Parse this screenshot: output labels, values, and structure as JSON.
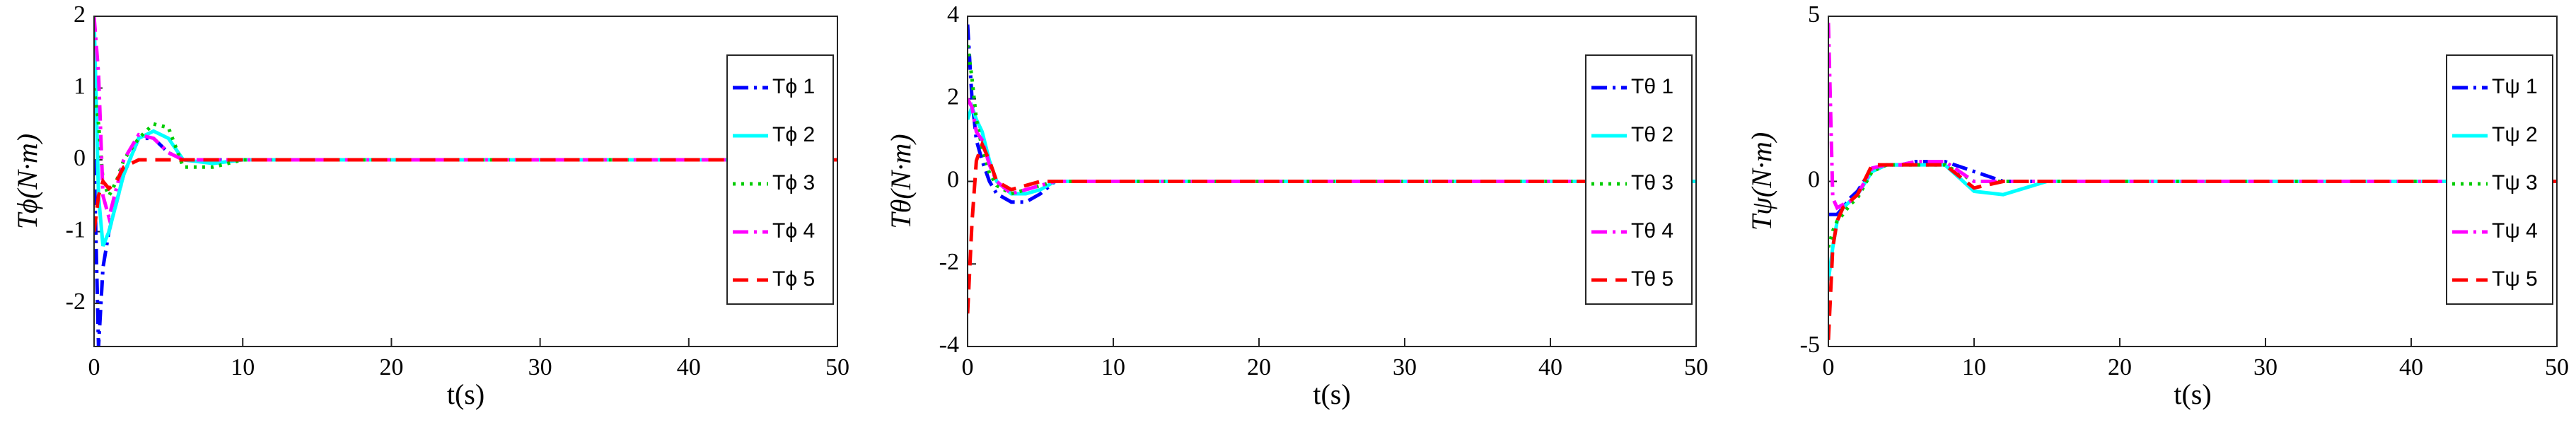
{
  "chart_data": [
    {
      "type": "line",
      "xlabel": "t(s)",
      "ylabel": "Tϕ(N·m)",
      "x": [
        0,
        0.3,
        0.6,
        1,
        1.5,
        2,
        3,
        4,
        5,
        6,
        8,
        10,
        12,
        15,
        20,
        30,
        40,
        50
      ],
      "xlim": [
        0,
        50
      ],
      "xticks": [
        0,
        10,
        20,
        30,
        40,
        50
      ],
      "ylim": [
        -2.6,
        2
      ],
      "yticks": [
        -2,
        -1,
        0,
        1,
        2
      ],
      "legend": "right",
      "series": [
        {
          "name": "Tϕ 1",
          "color": "#0000ff",
          "linestyle": "-.",
          "values": [
            0,
            -2.6,
            -1.5,
            -1.0,
            -0.6,
            -0.2,
            0.3,
            0.3,
            0.1,
            0,
            0,
            0,
            0,
            0,
            0,
            0,
            0,
            0
          ]
        },
        {
          "name": "Tϕ 2",
          "color": "#00ffff",
          "linestyle": "-",
          "values": [
            2,
            -0.5,
            -1.2,
            -1.0,
            -0.6,
            -0.2,
            0.3,
            0.4,
            0.3,
            0,
            -0.05,
            0,
            0,
            0,
            0,
            0,
            0,
            0
          ]
        },
        {
          "name": "Tϕ 3",
          "color": "#00cc00",
          "linestyle": ":",
          "values": [
            1,
            0.5,
            -0.3,
            -0.5,
            -0.3,
            0,
            0.3,
            0.5,
            0.45,
            -0.1,
            -0.1,
            0,
            0,
            0,
            0,
            0,
            0,
            0
          ]
        },
        {
          "name": "Tϕ 4",
          "color": "#ff00ff",
          "linestyle": "-.",
          "values": [
            2,
            1.2,
            -0.5,
            -0.8,
            -0.4,
            0,
            0.35,
            0.3,
            0.1,
            0,
            0,
            0,
            0,
            0,
            0,
            0,
            0,
            0
          ]
        },
        {
          "name": "Tϕ 5",
          "color": "#ff0000",
          "linestyle": "--",
          "values": [
            -1,
            -0.5,
            -0.3,
            -0.4,
            -0.3,
            -0.1,
            0,
            0,
            0,
            0,
            0,
            0,
            0,
            0,
            0,
            0,
            0,
            0
          ]
        }
      ]
    },
    {
      "type": "line",
      "xlabel": "t(s)",
      "ylabel": "Tθ(N·m)",
      "x": [
        0,
        0.3,
        0.6,
        1,
        1.5,
        2,
        3,
        4,
        5,
        6,
        8,
        10,
        12,
        15,
        20,
        30,
        40,
        50
      ],
      "xlim": [
        0,
        50
      ],
      "xticks": [
        0,
        10,
        20,
        30,
        40,
        50
      ],
      "ylim": [
        -4,
        4
      ],
      "yticks": [
        -4,
        -2,
        0,
        2,
        4
      ],
      "legend": "right",
      "series": [
        {
          "name": "Tθ 1",
          "color": "#0000ff",
          "linestyle": "-.",
          "values": [
            3.8,
            2,
            1,
            0.5,
            0,
            -0.3,
            -0.5,
            -0.5,
            -0.3,
            0,
            0,
            0,
            0,
            0,
            0,
            0,
            0,
            0
          ]
        },
        {
          "name": "Tθ 2",
          "color": "#00ffff",
          "linestyle": "-",
          "values": [
            1.5,
            1.8,
            1.5,
            1.2,
            0.5,
            0,
            -0.3,
            -0.3,
            -0.2,
            0,
            0,
            0,
            0,
            0,
            0,
            0,
            0,
            0
          ]
        },
        {
          "name": "Tθ 3",
          "color": "#00cc00",
          "linestyle": ":",
          "values": [
            3.3,
            2.5,
            1.5,
            0.8,
            0.2,
            -0.1,
            -0.3,
            -0.2,
            -0.1,
            0,
            0,
            0,
            0,
            0,
            0,
            0,
            0,
            0
          ]
        },
        {
          "name": "Tθ 4",
          "color": "#ff00ff",
          "linestyle": "-.",
          "values": [
            2,
            1.8,
            1.2,
            1,
            0.4,
            0,
            -0.3,
            -0.2,
            -0.1,
            0,
            0,
            0,
            0,
            0,
            0,
            0,
            0,
            0
          ]
        },
        {
          "name": "Tθ 5",
          "color": "#ff0000",
          "linestyle": "--",
          "values": [
            -3.2,
            -1,
            0.5,
            0.9,
            0.5,
            0,
            -0.2,
            -0.1,
            0,
            0,
            0,
            0,
            0,
            0,
            0,
            0,
            0,
            0
          ]
        }
      ]
    },
    {
      "type": "line",
      "xlabel": "t(s)",
      "ylabel": "Tψ(N·m)",
      "x": [
        0,
        0.3,
        0.6,
        1,
        1.5,
        2,
        3,
        4,
        5,
        6,
        8,
        10,
        12,
        15,
        20,
        30,
        40,
        50
      ],
      "xlim": [
        0,
        50
      ],
      "xticks": [
        0,
        10,
        20,
        30,
        40,
        50
      ],
      "ylim": [
        -5,
        5
      ],
      "yticks": [
        -5,
        0,
        5
      ],
      "legend": "right",
      "series": [
        {
          "name": "Tψ 1",
          "color": "#0000ff",
          "linestyle": "-.",
          "values": [
            -1,
            -1,
            -1,
            -0.8,
            -0.5,
            -0.3,
            0.4,
            0.5,
            0.5,
            0.6,
            0.6,
            0.3,
            0,
            0,
            0,
            0,
            0,
            0
          ]
        },
        {
          "name": "Tψ 2",
          "color": "#00ffff",
          "linestyle": "-",
          "values": [
            -3,
            -2,
            -1.2,
            -0.8,
            -0.6,
            -0.4,
            0.3,
            0.5,
            0.5,
            0.5,
            0.5,
            -0.3,
            -0.4,
            0,
            0,
            0,
            0,
            0
          ]
        },
        {
          "name": "Tψ 3",
          "color": "#00cc00",
          "linestyle": ":",
          "values": [
            -2,
            -1.5,
            -1.2,
            -1,
            -0.7,
            -0.5,
            0.3,
            0.5,
            0.5,
            0.5,
            0.5,
            0,
            0,
            0,
            0,
            0,
            0,
            0
          ]
        },
        {
          "name": "Tψ 4",
          "color": "#ff00ff",
          "linestyle": "-.",
          "values": [
            4.8,
            -0.5,
            -0.8,
            -0.7,
            -0.6,
            -0.4,
            0.4,
            0.5,
            0.5,
            0.6,
            0.6,
            0,
            0,
            0,
            0,
            0,
            0,
            0
          ]
        },
        {
          "name": "Tψ 5",
          "color": "#ff0000",
          "linestyle": "--",
          "values": [
            -4.8,
            -2,
            -1.2,
            -0.8,
            -0.6,
            -0.4,
            0.5,
            0.5,
            0.5,
            0.5,
            0.5,
            -0.2,
            0,
            0,
            0,
            0,
            0,
            0
          ]
        }
      ]
    }
  ]
}
